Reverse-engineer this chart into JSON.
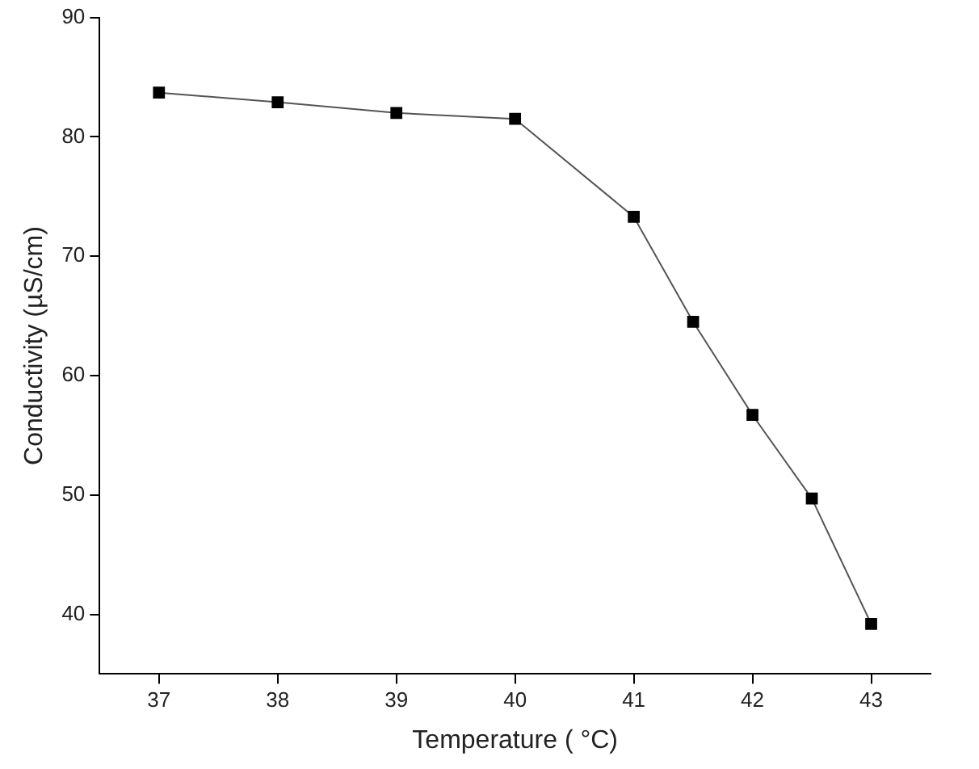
{
  "chart_data": {
    "type": "line",
    "xlabel": "Temperature ( °C)",
    "ylabel": "Conductivity (µS/cm)",
    "x": [
      37,
      38,
      39,
      40,
      41,
      41.5,
      42,
      42.5,
      43
    ],
    "series": [
      {
        "color": "#000000",
        "values": [
          83.7,
          82.9,
          82.0,
          81.5,
          73.3,
          64.5,
          56.7,
          49.7,
          39.2
        ]
      }
    ],
    "xlim": [
      36.5,
      43.5
    ],
    "xticks": [
      37,
      38,
      39,
      40,
      41,
      42,
      43
    ],
    "ylim": [
      35,
      90
    ],
    "yticks": [
      40,
      50,
      60,
      70,
      80,
      90
    ],
    "grid": false,
    "legend": false,
    "marker": "square",
    "line_style": "solid"
  }
}
